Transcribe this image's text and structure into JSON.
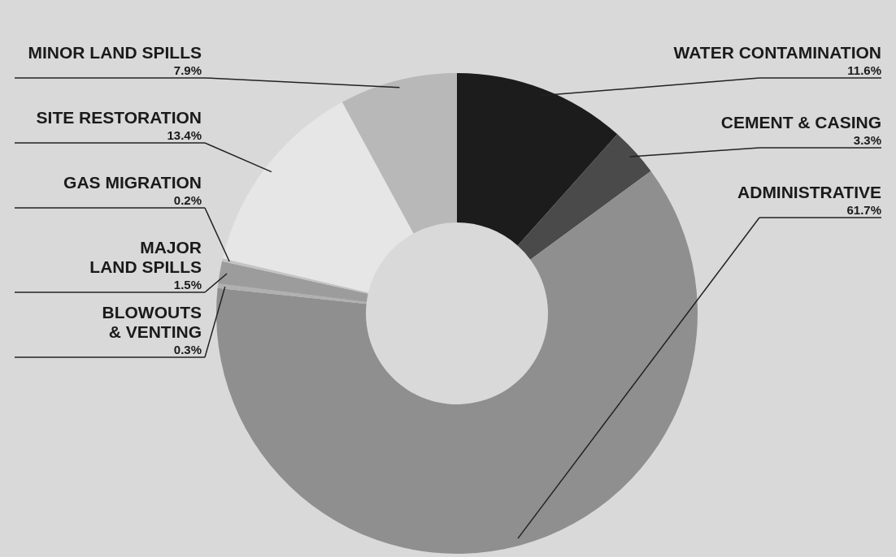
{
  "chart_data": {
    "type": "donut",
    "categories": [
      "WATER CONTAMINATION",
      "CEMENT & CASING",
      "ADMINISTRATIVE",
      "BLOWOUTS\n& VENTING",
      "MAJOR\nLAND SPILLS",
      "GAS MIGRATION",
      "SITE RESTORATION",
      "MINOR LAND SPILLS"
    ],
    "values": [
      11.6,
      3.3,
      61.7,
      0.3,
      1.5,
      0.2,
      13.4,
      7.9
    ],
    "value_labels": [
      "11.6%",
      "3.3%",
      "61.7%",
      "0.3%",
      "1.5%",
      "0.2%",
      "13.4%",
      "7.9%"
    ],
    "colors": [
      "#1c1c1c",
      "#4a4a4a",
      "#8f8f8f",
      "#b0b0b0",
      "#9c9c9c",
      "#c4c4c4",
      "#e6e6e6",
      "#b8b8b8"
    ]
  }
}
